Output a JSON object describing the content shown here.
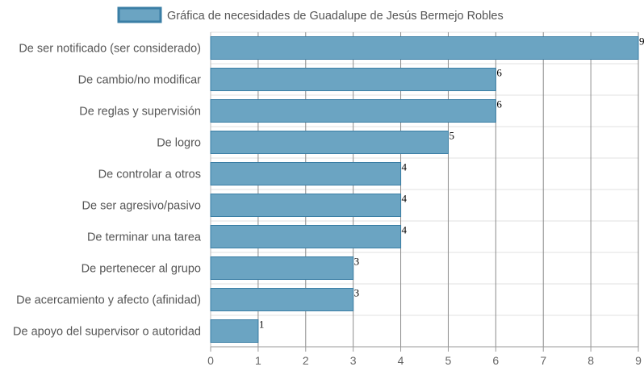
{
  "chart_data": {
    "type": "bar",
    "orientation": "horizontal",
    "legend_label": "Gráfica de necesidades de Guadalupe de Jesús Bermejo Robles",
    "legend_position": "top",
    "categories": [
      "De ser notificado (ser considerado)",
      "De cambio/no modificar",
      "De reglas y supervisión",
      "De logro",
      "De controlar a otros",
      "De ser agresivo/pasivo",
      "De terminar una tarea",
      "De pertenecer al grupo",
      "De acercamiento y afecto (afinidad)",
      "De apoyo del supervisor o autoridad"
    ],
    "values": [
      9,
      6,
      6,
      5,
      4,
      4,
      4,
      3,
      3,
      1
    ],
    "xlim": [
      0,
      9
    ],
    "x_ticks": [
      0,
      1,
      2,
      3,
      4,
      5,
      6,
      7,
      8,
      9
    ],
    "grid": true,
    "colors": {
      "bar_fill": "#6ba4c2",
      "bar_stroke": "#3a7ea5",
      "grid": "#e0e0e0",
      "vgrid": "#8c8c8c"
    }
  }
}
